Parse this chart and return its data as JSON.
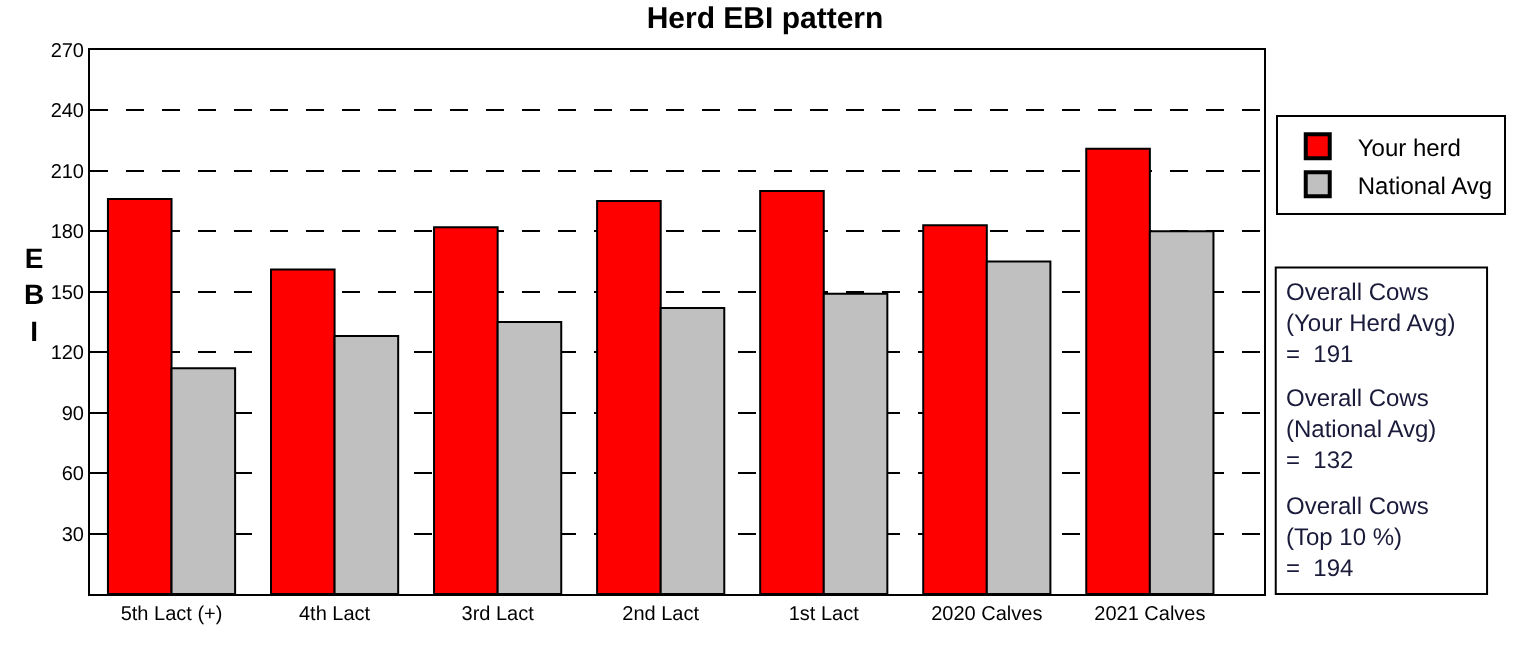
{
  "chart_data": {
    "type": "bar",
    "title": "Herd EBI pattern",
    "ylabel": "EBI",
    "categories": [
      "5th Lact (+)",
      "4th Lact",
      "3rd Lact",
      "2nd Lact",
      "1st Lact",
      "2020 Calves",
      "2021 Calves"
    ],
    "series": [
      {
        "name": "Your herd",
        "color": "#ff0000",
        "values": [
          196,
          161,
          182,
          195,
          200,
          183,
          221
        ]
      },
      {
        "name": "National Avg",
        "color": "#c0c0c0",
        "values": [
          112,
          128,
          135,
          142,
          149,
          165,
          180
        ]
      }
    ],
    "ylim": [
      0,
      270
    ],
    "yticks": [
      30,
      60,
      90,
      120,
      150,
      180,
      210,
      240,
      270
    ],
    "grid": "y",
    "legend": "right",
    "annotations": [
      "Overall Cows\n(Your Herd Avg)\n=  191",
      "Overall Cows\n(National Avg)\n=  132",
      "Overall Cows\n(Top 10 %)\n=  194"
    ]
  }
}
